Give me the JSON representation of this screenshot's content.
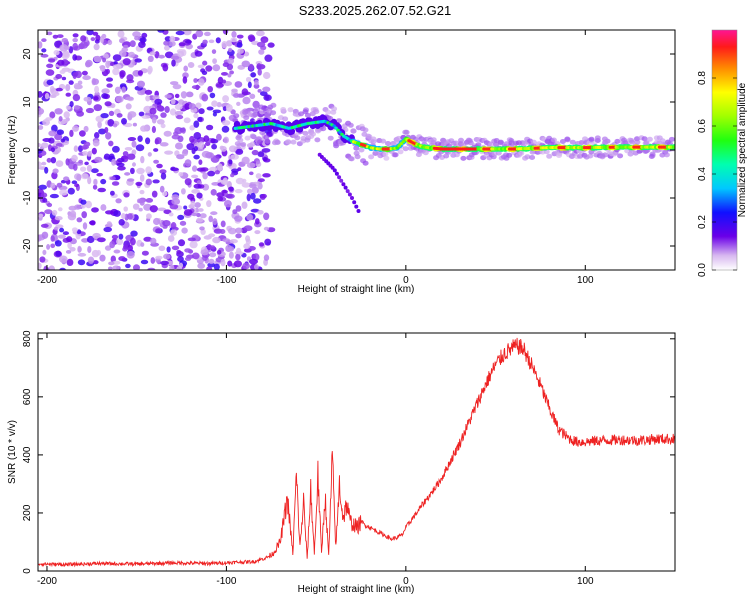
{
  "title": "S233.2025.262.07.52.G21",
  "chart_data": [
    {
      "type": "heatmap",
      "xlabel": "Height of straight line (km)",
      "ylabel": "Frequency (Hz)",
      "xlim": [
        -205,
        150
      ],
      "ylim": [
        -25,
        25
      ],
      "xticks": [
        -200,
        -100,
        0,
        100
      ],
      "xtick_labels": [
        "-200",
        "-100",
        "0",
        "100"
      ],
      "yticks": [
        20,
        10,
        0,
        -10,
        -20
      ],
      "ytick_labels": [
        "20",
        "10",
        "0",
        "-10",
        "-20"
      ],
      "noise_region_x": [
        -205,
        -75
      ],
      "ridge": {
        "x": [
          -95,
          -85,
          -75,
          -65,
          -55,
          -45,
          -40,
          -35,
          -30,
          -25,
          -20,
          -15,
          -10,
          -5,
          0,
          5,
          10,
          20,
          40,
          60,
          80,
          100,
          120,
          150
        ],
        "y": [
          4.5,
          5,
          5.5,
          4.5,
          5.5,
          6,
          5,
          3,
          1.8,
          1.2,
          0.5,
          0.2,
          0.2,
          0.4,
          2.3,
          1.3,
          0.6,
          0.2,
          0.2,
          0.2,
          0.5,
          0.5,
          0.6,
          0.6
        ]
      },
      "branch": {
        "x": [
          -48,
          -40,
          -35,
          -30,
          -26
        ],
        "y": [
          -1,
          -4,
          -7,
          -10,
          -13
        ]
      },
      "colorbar": {
        "label": "Normalized spectral amplitude",
        "range": [
          0,
          1
        ],
        "ticks": [
          0.0,
          0.2,
          0.4,
          0.6,
          0.8
        ],
        "tick_labels": [
          "0.0",
          "0.2",
          "0.4",
          "0.6",
          "0.8"
        ]
      },
      "grid": false
    },
    {
      "type": "line",
      "xlabel": "Height of straight line (km)",
      "ylabel": "SNR (10 * v/v)",
      "xlim": [
        -205,
        150
      ],
      "ylim": [
        0,
        820
      ],
      "xticks": [
        -200,
        -100,
        0,
        100
      ],
      "xtick_labels": [
        "-200",
        "-100",
        "0",
        "100"
      ],
      "yticks": [
        0,
        200,
        400,
        600,
        800
      ],
      "ytick_labels": [
        "0",
        "200",
        "400",
        "600",
        "800"
      ],
      "series": [
        {
          "color": "#ee2222",
          "x": [
            -205,
            -190,
            -170,
            -150,
            -130,
            -110,
            -95,
            -85,
            -78,
            -74,
            -70,
            -66,
            -63,
            -61,
            -59,
            -57,
            -55,
            -53,
            -51,
            -49,
            -47,
            -45,
            -43,
            -41,
            -39,
            -37,
            -35,
            -33,
            -31,
            -29,
            -27,
            -25,
            -23,
            -20,
            -17,
            -14,
            -11,
            -8,
            -5,
            -2,
            0,
            3,
            6,
            10,
            15,
            20,
            25,
            30,
            35,
            40,
            45,
            50,
            55,
            60,
            63,
            66,
            70,
            75,
            80,
            85,
            90,
            95,
            100,
            110,
            120,
            130,
            140,
            150
          ],
          "y": [
            25,
            22,
            26,
            24,
            28,
            26,
            30,
            32,
            45,
            60,
            100,
            250,
            60,
            330,
            80,
            240,
            40,
            280,
            60,
            330,
            60,
            260,
            50,
            390,
            80,
            300,
            180,
            230,
            170,
            160,
            150,
            170,
            160,
            150,
            140,
            130,
            120,
            110,
            115,
            125,
            150,
            175,
            200,
            235,
            275,
            320,
            380,
            440,
            510,
            580,
            650,
            710,
            750,
            770,
            775,
            760,
            710,
            640,
            560,
            490,
            460,
            445,
            445,
            450,
            452,
            450,
            455,
            455
          ]
        }
      ],
      "grid": false
    }
  ]
}
